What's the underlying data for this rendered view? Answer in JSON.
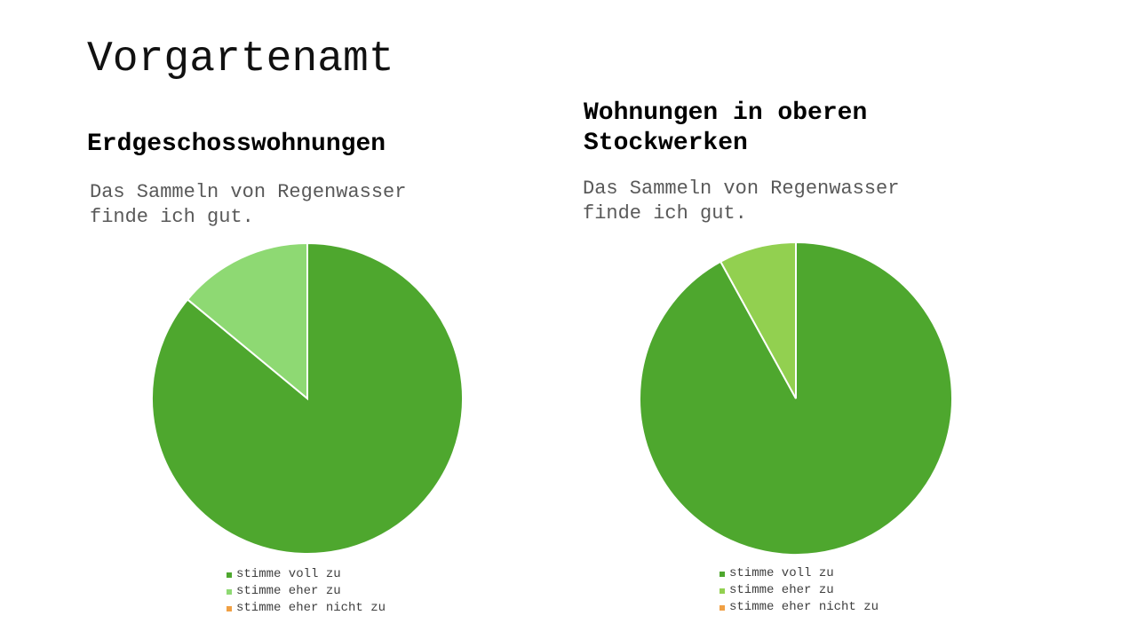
{
  "title": "Vorgartenamt",
  "chart_data": [
    {
      "type": "pie",
      "title": "Erdgeschosswohnungen",
      "subtitle": "Das Sammeln von Regenwasser finde ich gut.",
      "categories": [
        "stimme voll zu",
        "stimme eher zu",
        "stimme eher nicht zu"
      ],
      "values": [
        86,
        14,
        0
      ],
      "colors": [
        "#4ea72e",
        "#8ed973",
        "#f0a044"
      ]
    },
    {
      "type": "pie",
      "title": "Wohnungen in oberen Stockwerken",
      "subtitle": "Das Sammeln von Regenwasser finde ich gut.",
      "categories": [
        "stimme voll zu",
        "stimme eher zu",
        "stimme eher nicht zu"
      ],
      "values": [
        92,
        8,
        0
      ],
      "colors": [
        "#4ea72e",
        "#92d050",
        "#f0a044"
      ]
    }
  ]
}
